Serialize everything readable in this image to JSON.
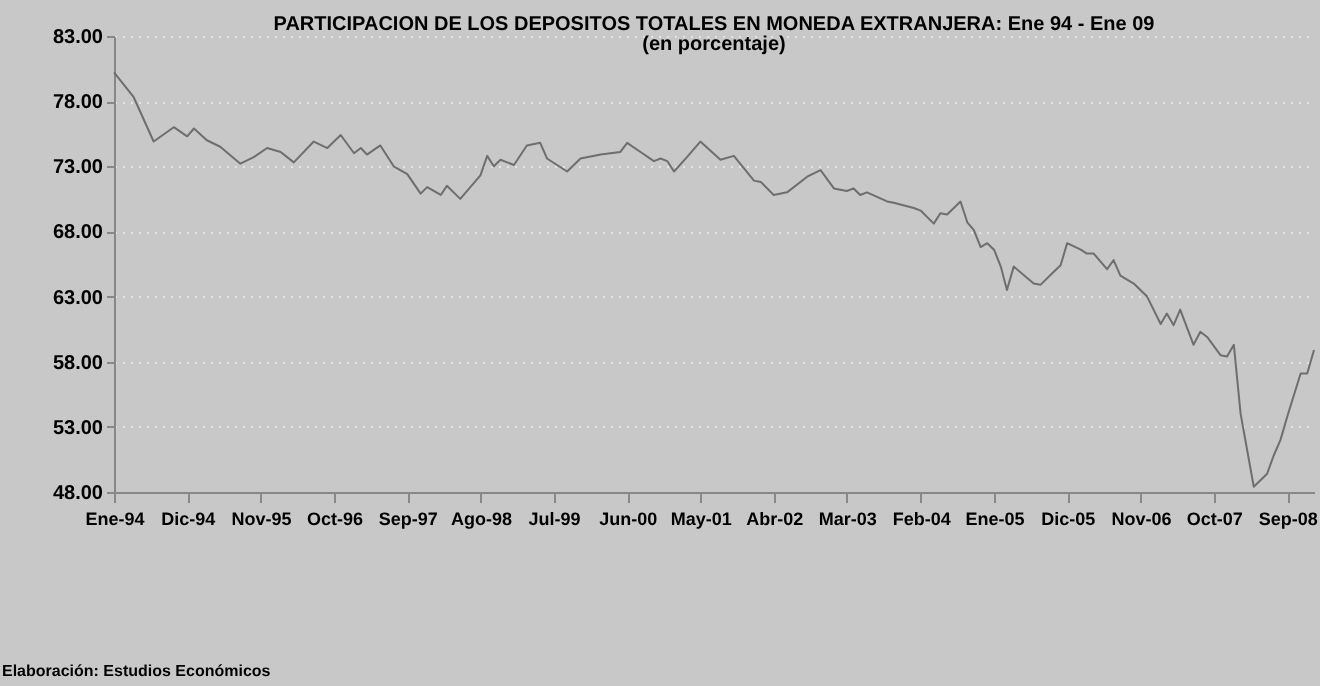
{
  "chart_data": {
    "type": "line",
    "title": "PARTICIPACION DE LOS DEPOSITOS TOTALES EN MONEDA EXTRANJERA: Ene 94 - Ene 09",
    "subtitle": "(en porcentaje)",
    "x": [
      "1994-01",
      "1994-04",
      "1994-07",
      "1994-10",
      "1994-12",
      "1995-01",
      "1995-03",
      "1995-05",
      "1995-08",
      "1995-10",
      "1995-12",
      "1996-02",
      "1996-04",
      "1996-07",
      "1996-09",
      "1996-11",
      "1997-01",
      "1997-02",
      "1997-03",
      "1997-05",
      "1997-07",
      "1997-09",
      "1997-11",
      "1997-12",
      "1998-02",
      "1998-03",
      "1998-05",
      "1998-08",
      "1998-09",
      "1998-10",
      "1998-11",
      "1999-01",
      "1999-03",
      "1999-05",
      "1999-06",
      "1999-09",
      "1999-11",
      "2000-02",
      "2000-05",
      "2000-06",
      "2000-08",
      "2000-10",
      "2000-11",
      "2000-12",
      "2001-01",
      "2001-03",
      "2001-05",
      "2001-08",
      "2001-10",
      "2002-01",
      "2002-02",
      "2002-04",
      "2002-06",
      "2002-09",
      "2002-11",
      "2003-01",
      "2003-03",
      "2003-04",
      "2003-05",
      "2003-06",
      "2003-09",
      "2003-10",
      "2004-01",
      "2004-02",
      "2004-04",
      "2004-05",
      "2004-06",
      "2004-08",
      "2004-09",
      "2004-10",
      "2004-11",
      "2004-12",
      "2005-01",
      "2005-02",
      "2005-03",
      "2005-04",
      "2005-07",
      "2005-08",
      "2005-10",
      "2005-11",
      "2005-12",
      "2006-02",
      "2006-03",
      "2006-04",
      "2006-06",
      "2006-07",
      "2006-08",
      "2006-10",
      "2006-12",
      "2007-02",
      "2007-03",
      "2007-04",
      "2007-05",
      "2007-07",
      "2007-08",
      "2007-09",
      "2007-11",
      "2007-12",
      "2008-01",
      "2008-02",
      "2008-04",
      "2008-06",
      "2008-07",
      "2008-08",
      "2008-09",
      "2008-11",
      "2008-12",
      "2009-01"
    ],
    "series": [
      {
        "color": "#6e6e6e",
        "values": [
          80.2,
          78.3,
          74.9,
          76.0,
          75.3,
          75.9,
          75.0,
          74.5,
          73.2,
          73.7,
          74.4,
          74.1,
          73.3,
          74.9,
          74.4,
          75.4,
          74.0,
          74.4,
          73.9,
          74.6,
          73.0,
          72.4,
          70.9,
          71.4,
          70.8,
          71.5,
          70.5,
          72.3,
          73.8,
          73.0,
          73.5,
          73.1,
          74.6,
          74.8,
          73.6,
          72.6,
          73.6,
          73.9,
          74.1,
          74.8,
          74.1,
          73.4,
          73.6,
          73.4,
          72.6,
          73.7,
          74.9,
          73.5,
          73.8,
          71.9,
          71.8,
          70.8,
          71.0,
          72.2,
          72.7,
          71.3,
          71.1,
          71.3,
          70.8,
          71.0,
          70.3,
          70.2,
          69.8,
          69.6,
          68.6,
          69.4,
          69.3,
          70.3,
          68.7,
          68.1,
          66.8,
          67.1,
          66.6,
          65.3,
          63.5,
          65.3,
          64.0,
          63.9,
          64.9,
          65.4,
          67.1,
          66.6,
          66.3,
          66.3,
          65.1,
          65.8,
          64.6,
          64.0,
          63.0,
          60.9,
          61.7,
          60.8,
          62.0,
          59.3,
          60.3,
          59.9,
          58.5,
          58.4,
          59.3,
          54.0,
          48.4,
          49.4,
          50.8,
          52.0,
          53.8,
          57.1,
          57.1,
          58.9
        ]
      }
    ],
    "xlim": [
      "1994-01",
      "2009-01"
    ],
    "xticks": [
      {
        "value": "1994-01",
        "label": "Ene-94"
      },
      {
        "value": "1994-12",
        "label": "Dic-94"
      },
      {
        "value": "1995-11",
        "label": "Nov-95"
      },
      {
        "value": "1996-10",
        "label": "Oct-96"
      },
      {
        "value": "1997-09",
        "label": "Sep-97"
      },
      {
        "value": "1998-08",
        "label": "Ago-98"
      },
      {
        "value": "1999-07",
        "label": "Jul-99"
      },
      {
        "value": "2000-06",
        "label": "Jun-00"
      },
      {
        "value": "2001-05",
        "label": "May-01"
      },
      {
        "value": "2002-04",
        "label": "Abr-02"
      },
      {
        "value": "2003-03",
        "label": "Mar-03"
      },
      {
        "value": "2004-02",
        "label": "Feb-04"
      },
      {
        "value": "2005-01",
        "label": "Ene-05"
      },
      {
        "value": "2005-12",
        "label": "Dic-05"
      },
      {
        "value": "2006-11",
        "label": "Nov-06"
      },
      {
        "value": "2007-10",
        "label": "Oct-07"
      },
      {
        "value": "2008-09",
        "label": "Sep-08"
      }
    ],
    "ylim": [
      48,
      83
    ],
    "yticks": [
      {
        "value": 48,
        "label": "48.00"
      },
      {
        "value": 53,
        "label": "53.00"
      },
      {
        "value": 58,
        "label": "58.00"
      },
      {
        "value": 63,
        "label": "63.00"
      },
      {
        "value": 68,
        "label": "68.00"
      },
      {
        "value": 73,
        "label": "73.00"
      },
      {
        "value": 78,
        "label": "78.00"
      },
      {
        "value": 83,
        "label": "83.00"
      }
    ],
    "grid": "y",
    "marker": "none",
    "line_style": "solid",
    "annotations": [
      "Elaboración: Estudios Económicos"
    ]
  }
}
